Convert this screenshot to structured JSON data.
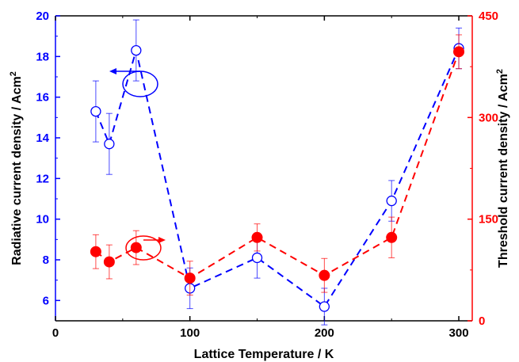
{
  "chart_data": {
    "type": "scatter",
    "xlabel": "Lattice Temperature / K",
    "ylabel_left": "Radiative current density / Acm",
    "ylabel_left_sup": "2",
    "ylabel_right": "Threshold current density / Acm",
    "ylabel_right_sup": "2",
    "xlim": [
      0,
      310
    ],
    "ylim_left": [
      5,
      20
    ],
    "ylim_right": [
      0,
      450
    ],
    "x_ticks": [
      0,
      100,
      200,
      300
    ],
    "y_left_ticks": [
      6,
      8,
      10,
      12,
      14,
      16,
      18,
      20
    ],
    "y_right_ticks": [
      0,
      150,
      300,
      450
    ],
    "series": [
      {
        "axis": "left",
        "color": "#0000ff",
        "marker": "open-circle",
        "line": "dashed",
        "x": [
          30,
          40,
          60,
          100,
          150,
          200,
          250,
          300
        ],
        "y": [
          15.3,
          13.7,
          18.3,
          6.6,
          8.1,
          5.7,
          10.9,
          18.4
        ],
        "err": [
          1.5,
          1.5,
          1.5,
          1.0,
          1.0,
          0.9,
          1.0,
          1.0
        ]
      },
      {
        "axis": "right",
        "color": "#ff0000",
        "marker": "filled-circle",
        "line": "dashed",
        "x": [
          30,
          40,
          60,
          100,
          150,
          200,
          250,
          300
        ],
        "y": [
          102,
          87,
          108,
          63,
          123,
          67,
          123,
          397
        ],
        "err": [
          25,
          25,
          25,
          25,
          20,
          25,
          30,
          25
        ]
      }
    ]
  }
}
